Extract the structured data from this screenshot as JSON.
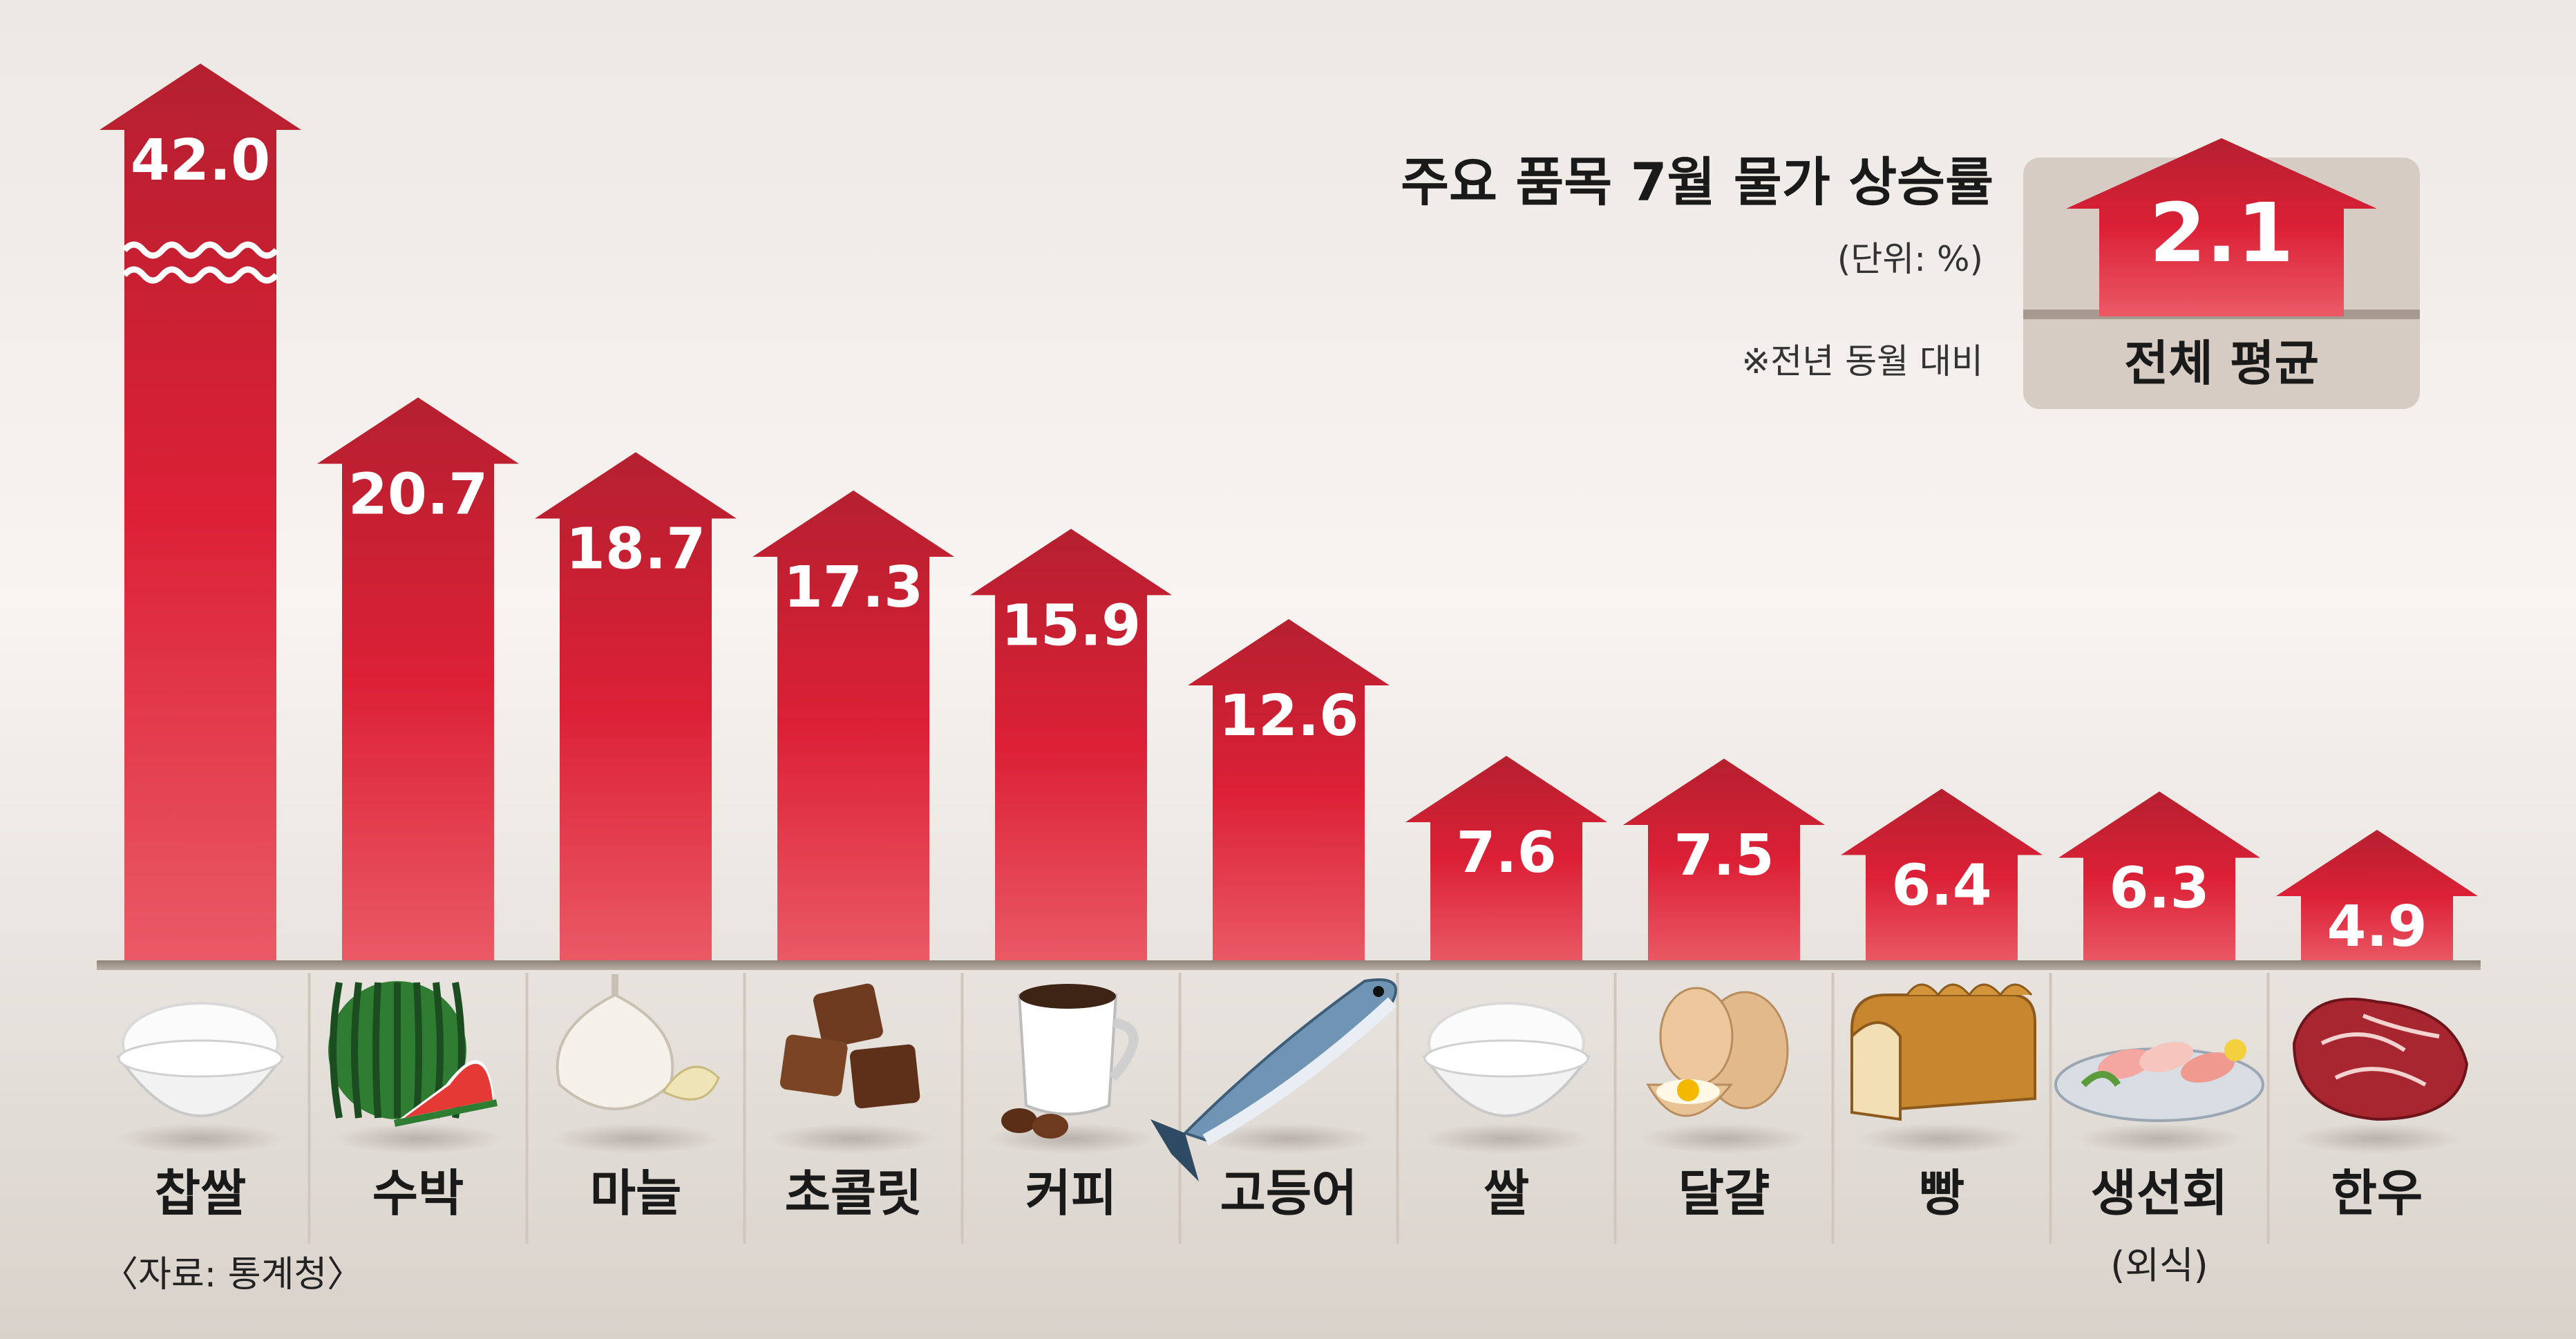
{
  "chart_data": {
    "type": "bar",
    "title": "주요 품목 7월 물가 상승률",
    "unit_note": "(단위: %)",
    "comparison_note": "※전년 동월 대비",
    "source": "〈자료: 통계청〉",
    "ylim": [
      0,
      25
    ],
    "axis_break_above": 20.7,
    "categories": [
      "찹쌀",
      "수박",
      "마늘",
      "초콜릿",
      "커피",
      "고등어",
      "쌀",
      "달걀",
      "빵",
      "생선회",
      "한우"
    ],
    "category_sublabels": [
      "",
      "",
      "",
      "",
      "",
      "",
      "",
      "",
      "",
      "(외식)",
      ""
    ],
    "values": [
      42.0,
      20.7,
      18.7,
      17.3,
      15.9,
      12.6,
      7.6,
      7.5,
      6.4,
      6.3,
      4.9
    ],
    "value_labels": [
      "42.0",
      "20.7",
      "18.7",
      "17.3",
      "15.9",
      "12.6",
      "7.6",
      "7.5",
      "6.4",
      "6.3",
      "4.9"
    ],
    "icons": [
      "rice-bowl-icon",
      "watermelon-icon",
      "garlic-icon",
      "chocolate-icon",
      "coffee-icon",
      "mackerel-icon",
      "rice-bowl-icon",
      "egg-icon",
      "bread-icon",
      "sashimi-icon",
      "beef-icon"
    ],
    "average": {
      "value": 2.1,
      "value_label": "2.1",
      "label": "전체 평균"
    },
    "colors": {
      "bar_top": "#b5202f",
      "bar_mid": "#dc2036",
      "bar_bottom": "#ea5a66",
      "background": "#e7e2dd",
      "text": "#1a1a1a",
      "value_text": "#ffffff",
      "avg_box": "#d8cec5"
    }
  }
}
